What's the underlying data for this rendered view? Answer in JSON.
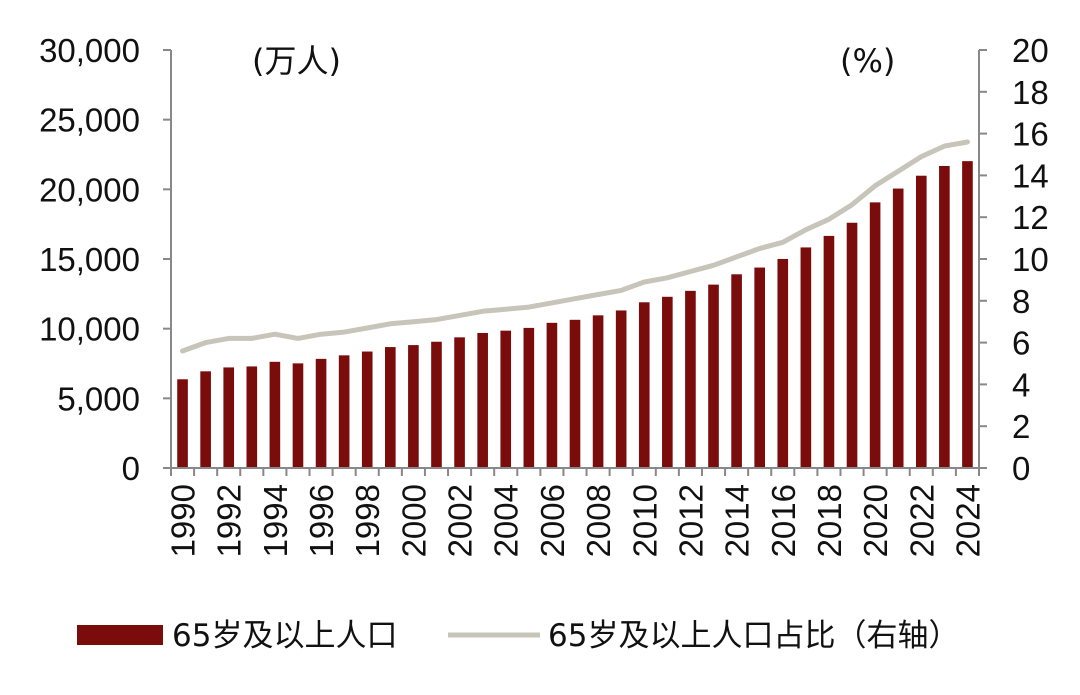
{
  "chart_data": {
    "type": "bar",
    "left_unit_label": "(万人)",
    "right_unit_label": "(%)",
    "x_tick_labels": [
      "1990",
      "1992",
      "1994",
      "1996",
      "1998",
      "2000",
      "2002",
      "2004",
      "2006",
      "2008",
      "2010",
      "2012",
      "2014",
      "2016",
      "2018",
      "2020",
      "2022",
      "2024"
    ],
    "left_axis": {
      "ylim": [
        0,
        30000
      ],
      "ticks": [
        0,
        5000,
        10000,
        15000,
        20000,
        25000,
        30000
      ],
      "tick_labels": [
        "0",
        "5,000",
        "10,000",
        "15,000",
        "20,000",
        "25,000",
        "30,000"
      ]
    },
    "right_axis": {
      "ylim": [
        0,
        20
      ],
      "ticks": [
        0,
        2,
        4,
        6,
        8,
        10,
        12,
        14,
        16,
        18,
        20
      ],
      "tick_labels": [
        "0",
        "2",
        "4",
        "6",
        "8",
        "10",
        "12",
        "14",
        "16",
        "18",
        "20"
      ]
    },
    "grid": false,
    "legend_position": "bottom",
    "categories": [
      1990,
      1991,
      1992,
      1993,
      1994,
      1995,
      1996,
      1997,
      1998,
      1999,
      2000,
      2001,
      2002,
      2003,
      2004,
      2005,
      2006,
      2007,
      2008,
      2009,
      2010,
      2011,
      2012,
      2013,
      2014,
      2015,
      2016,
      2017,
      2018,
      2019,
      2020,
      2021,
      2022,
      2023,
      2024
    ],
    "series": [
      {
        "name": "65岁及以上人口",
        "kind": "bar",
        "axis": "left",
        "color": "#7a0c0c",
        "values": [
          6368,
          6938,
          7218,
          7289,
          7622,
          7510,
          7833,
          8085,
          8359,
          8679,
          8821,
          9062,
          9377,
          9692,
          9857,
          10055,
          10419,
          10636,
          10956,
          11307,
          11894,
          12288,
          12714,
          13161,
          13902,
          14386,
          15003,
          15831,
          16658,
          17603,
          19064,
          20056,
          20978,
          21676,
          22023
        ]
      },
      {
        "name": "65岁及以上人口占比（右轴）",
        "kind": "line",
        "axis": "right",
        "color": "#c7c5b9",
        "values": [
          5.6,
          6.0,
          6.2,
          6.2,
          6.4,
          6.2,
          6.4,
          6.5,
          6.7,
          6.9,
          7.0,
          7.1,
          7.3,
          7.5,
          7.6,
          7.7,
          7.9,
          8.1,
          8.3,
          8.5,
          8.9,
          9.1,
          9.4,
          9.7,
          10.1,
          10.5,
          10.8,
          11.4,
          11.9,
          12.6,
          13.5,
          14.2,
          14.9,
          15.4,
          15.6
        ]
      }
    ]
  }
}
